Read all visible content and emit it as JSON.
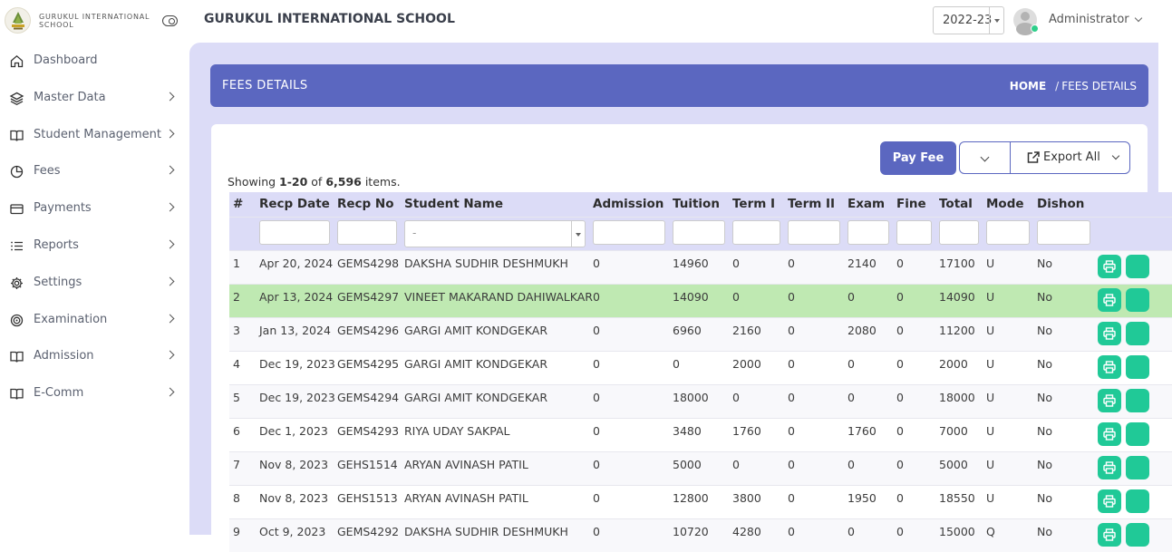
{
  "brand": {
    "name": "GURUKUL INTERNATIONAL SCHOOL"
  },
  "sidebar": {
    "items": [
      {
        "label": "Dashboard",
        "icon": "home-icon",
        "has_submenu": false
      },
      {
        "label": "Master Data",
        "icon": "layers-icon",
        "has_submenu": true
      },
      {
        "label": "Student Management",
        "icon": "book-icon",
        "has_submenu": true
      },
      {
        "label": "Fees",
        "icon": "pie-chart-icon",
        "has_submenu": true
      },
      {
        "label": "Payments",
        "icon": "credit-card-icon",
        "has_submenu": true
      },
      {
        "label": "Reports",
        "icon": "list-icon",
        "has_submenu": true
      },
      {
        "label": "Settings",
        "icon": "gear-icon",
        "has_submenu": true
      },
      {
        "label": "Examination",
        "icon": "target-icon",
        "has_submenu": true
      },
      {
        "label": "Admission",
        "icon": "book-icon",
        "has_submenu": true
      },
      {
        "label": "E-Comm",
        "icon": "book-icon",
        "has_submenu": true
      }
    ]
  },
  "topbar": {
    "title": "GURUKUL INTERNATIONAL SCHOOL",
    "year": "2022-23",
    "user": "Administrator"
  },
  "page": {
    "title": "FEES DETAILS",
    "breadcrumb": {
      "home": "HOME",
      "current": "FEES DETAILS"
    }
  },
  "toolbar": {
    "pay_fee_label": "Pay Fee",
    "export_label": "Export All"
  },
  "summary": {
    "prefix": "Showing ",
    "range": "1-20",
    "middle": " of ",
    "total": "6,596",
    "suffix": " items."
  },
  "table": {
    "columns": [
      "#",
      "Recp Date",
      "Recp No",
      "Student Name",
      "Admission",
      "Tuition",
      "Term I",
      "Term II",
      "Exam",
      "Fine",
      "Total",
      "Mode",
      "Dishon"
    ],
    "student_filter_placeholder": "-",
    "highlighted_row": 2,
    "rows": [
      [
        "1",
        "Apr 20, 2024",
        "GEMS4298",
        "DAKSHA SUDHIR DESHMUKH",
        "0",
        "14960",
        "0",
        "0",
        "2140",
        "0",
        "17100",
        "U",
        "No"
      ],
      [
        "2",
        "Apr 13, 2024",
        "GEMS4297",
        "VINEET MAKARAND DAHIWALKAR",
        "0",
        "14090",
        "0",
        "0",
        "0",
        "0",
        "14090",
        "U",
        "No"
      ],
      [
        "3",
        "Jan 13, 2024",
        "GEMS4296",
        "GARGI AMIT KONDGEKAR",
        "0",
        "6960",
        "2160",
        "0",
        "2080",
        "0",
        "11200",
        "U",
        "No"
      ],
      [
        "4",
        "Dec 19, 2023",
        "GEMS4295",
        "GARGI AMIT KONDGEKAR",
        "0",
        "0",
        "2000",
        "0",
        "0",
        "0",
        "2000",
        "U",
        "No"
      ],
      [
        "5",
        "Dec 19, 2023",
        "GEMS4294",
        "GARGI AMIT KONDGEKAR",
        "0",
        "18000",
        "0",
        "0",
        "0",
        "0",
        "18000",
        "U",
        "No"
      ],
      [
        "6",
        "Dec 1, 2023",
        "GEMS4293",
        "RIYA UDAY SAKPAL",
        "0",
        "3480",
        "1760",
        "0",
        "1760",
        "0",
        "7000",
        "U",
        "No"
      ],
      [
        "7",
        "Nov 8, 2023",
        "GEHS1514",
        "ARYAN AVINASH PATIL",
        "0",
        "5000",
        "0",
        "0",
        "0",
        "0",
        "5000",
        "U",
        "No"
      ],
      [
        "8",
        "Nov 8, 2023",
        "GEHS1513",
        "ARYAN AVINASH PATIL",
        "0",
        "12800",
        "3800",
        "0",
        "1950",
        "0",
        "18550",
        "U",
        "No"
      ],
      [
        "9",
        "Oct 9, 2023",
        "GEMS4292",
        "DAKSHA SUDHIR DESHMUKH",
        "0",
        "10720",
        "4280",
        "0",
        "0",
        "0",
        "15000",
        "Q",
        "No"
      ]
    ]
  },
  "colors": {
    "accent": "#5b67c0",
    "main_bg": "#dcdcf7",
    "action_green": "#20c997",
    "highlight_row": "#bfe9b2"
  }
}
